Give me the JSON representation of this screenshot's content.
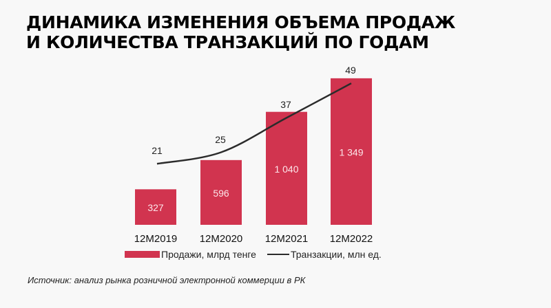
{
  "title": {
    "line1": "ДИНАМИКА ИЗМЕНЕНИЯ ОБЪЕМА ПРОДАЖ",
    "line2": "И КОЛИЧЕСТВА ТРАНЗАКЦИЙ ПО ГОДАМ"
  },
  "source": "Источник: анализ рынка розничной электронной коммерции в РК",
  "chart_data": {
    "type": "bar",
    "title": "Динамика изменения объема продаж и количества транзакций по годам",
    "categories": [
      "12M2019",
      "12M2020",
      "12M2021",
      "12M2022"
    ],
    "value_labels": [
      "327",
      "596",
      "1 040",
      "1 349"
    ],
    "line_labels": [
      "21",
      "25",
      "37",
      "49"
    ],
    "series": [
      {
        "name": "Продажи, млрд тенге",
        "type": "bar",
        "values": [
          327,
          596,
          1040,
          1349
        ],
        "color": "#d1344f"
      },
      {
        "name": "Транзакции, млн ед.",
        "type": "line",
        "values": [
          21,
          25,
          37,
          49
        ],
        "color": "#2b2b2b"
      }
    ],
    "legend": "bottom",
    "grid": false
  }
}
